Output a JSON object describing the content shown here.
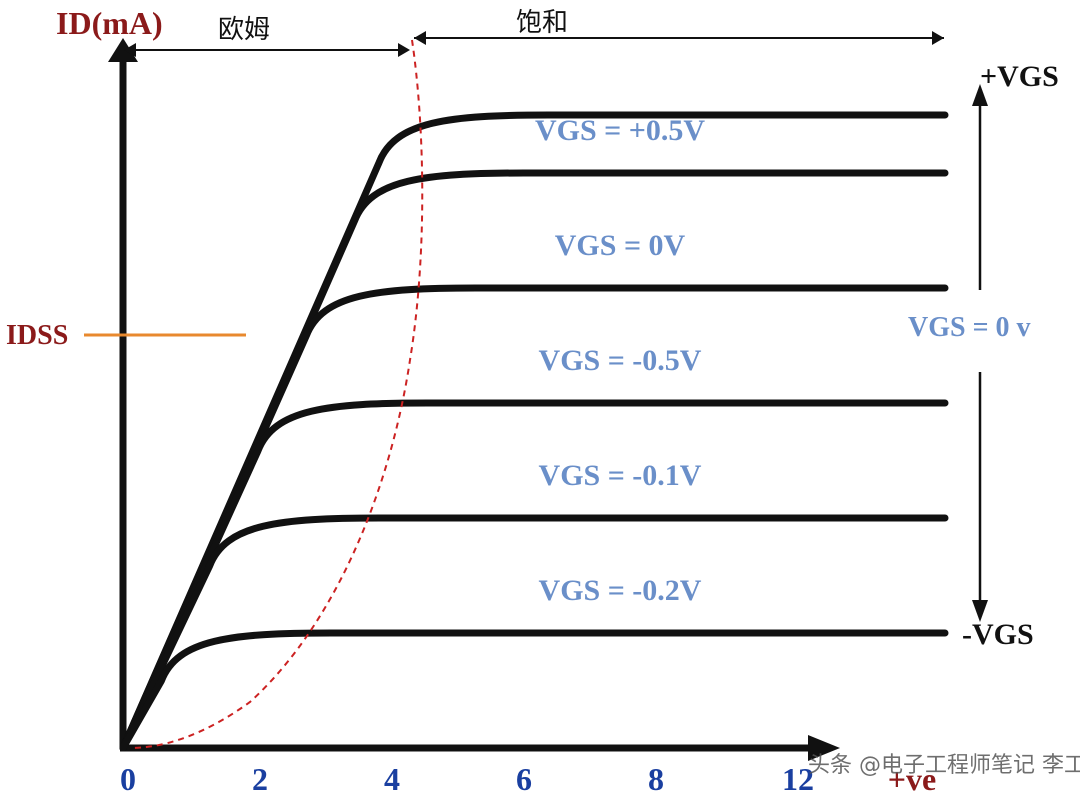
{
  "chart_data": {
    "type": "line",
    "title": "",
    "ylabel": "ID(mA)",
    "xlabel": "",
    "xlim": [
      0,
      13.2
    ],
    "x_ticks": [
      "0",
      "2",
      "4",
      "6",
      "8",
      "12",
      "+ve"
    ],
    "y_level_labels": {
      "idss": "IDSS"
    },
    "regions": [
      {
        "label": "欧姆"
      },
      {
        "label": "饱和"
      }
    ],
    "series": [
      {
        "name": "+VGS",
        "relative_level": 6
      },
      {
        "name": "VGS = +0.5V",
        "relative_level": 5
      },
      {
        "name": "VGS = 0V",
        "relative_level": 4
      },
      {
        "name": "VGS = -0.5V",
        "relative_level": 3
      },
      {
        "name": "VGS = -0.1V",
        "relative_level": 2
      },
      {
        "name": "VGS = -0.2V",
        "relative_level": 1
      }
    ],
    "gate_range": {
      "top": "+VGS",
      "mid": "VGS = 0 v",
      "bottom": "-VGS"
    },
    "colors": {
      "curves": "#111111",
      "curve_labels": "#6a8fc9",
      "axis_titles": "#8b1a1a",
      "tick_labels": "#1a3fa0",
      "boundary": "#cc2222",
      "idss_line": "#e8892e"
    }
  },
  "watermark": {
    "text": "头条 @电子工程师笔记 李工谈元器件"
  }
}
